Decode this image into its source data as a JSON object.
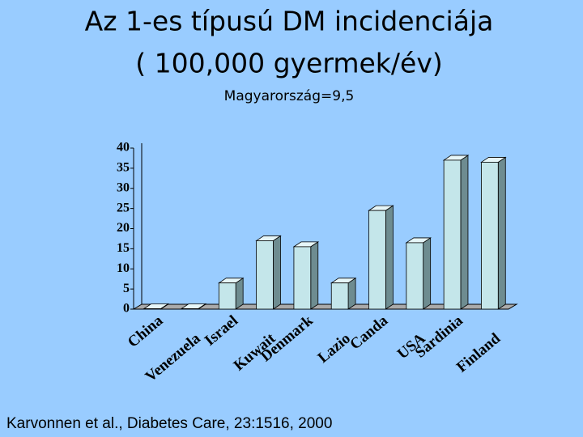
{
  "chart_data": {
    "type": "bar",
    "title": "Az 1-es típusú  DM incidenciája",
    "subtitle": "( 100,000 gyermek/év)",
    "annotation": "Magyarország=9,5",
    "source": "Karvonnen et al., Diabetes Care, 23:1516, 2000",
    "categories": [
      "China",
      "Venezuela",
      "Israel",
      "Kuwait",
      "Denmark",
      "Lazio",
      "Canda",
      "USA",
      "Sardinia",
      "Finland"
    ],
    "values": [
      0.1,
      0.1,
      6.5,
      17,
      15.5,
      6.5,
      24.5,
      16.5,
      37,
      36.5
    ],
    "color": "#c4e6ea",
    "ylim": [
      0,
      40
    ],
    "yticks": [
      0,
      5,
      10,
      15,
      20,
      25,
      30,
      35,
      40
    ],
    "grid": false
  }
}
